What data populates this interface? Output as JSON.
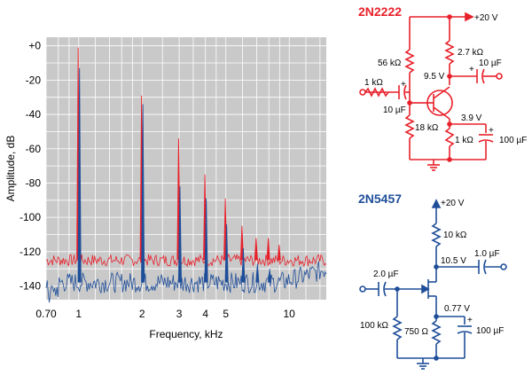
{
  "chart_data": {
    "type": "line",
    "xlabel": "Frequency, kHz",
    "ylabel": "Amplitude, dB",
    "xscale": "log",
    "xlim": [
      0.7,
      15
    ],
    "ylim": [
      -148,
      5
    ],
    "grid": true,
    "x_ticks": [
      {
        "value": 0.7,
        "label": "0.70"
      },
      {
        "value": 1,
        "label": "1"
      },
      {
        "value": 2,
        "label": "2"
      },
      {
        "value": 3,
        "label": "3"
      },
      {
        "value": 4,
        "label": "4"
      },
      {
        "value": 5,
        "label": "5"
      },
      {
        "value": 10,
        "label": "10"
      }
    ],
    "y_ticks": [
      {
        "value": 0,
        "label": "+0"
      },
      {
        "value": -20,
        "label": "-20"
      },
      {
        "value": -40,
        "label": "-40"
      },
      {
        "value": -60,
        "label": "-60"
      },
      {
        "value": -80,
        "label": "-80"
      },
      {
        "value": -100,
        "label": "-100"
      },
      {
        "value": -120,
        "label": "-120"
      },
      {
        "value": -140,
        "label": "-140"
      }
    ],
    "series": [
      {
        "color": "#e8202a",
        "noise_floor": -125,
        "harmonics": [
          {
            "x": 1,
            "y": -1
          },
          {
            "x": 2,
            "y": -29
          },
          {
            "x": 3,
            "y": -54
          },
          {
            "x": 4,
            "y": -75
          },
          {
            "x": 5,
            "y": -89
          },
          {
            "x": 6,
            "y": -105
          },
          {
            "x": 7,
            "y": -112
          },
          {
            "x": 8,
            "y": -112
          },
          {
            "x": 9,
            "y": -116
          }
        ]
      },
      {
        "color": "#1f4e99",
        "noise_floor": -138,
        "harmonics": [
          {
            "x": 1,
            "y": -13
          },
          {
            "x": 2,
            "y": -34
          },
          {
            "x": 3,
            "y": -82
          },
          {
            "x": 4,
            "y": -89
          },
          {
            "x": 5,
            "y": -104
          },
          {
            "x": 6,
            "y": -118
          },
          {
            "x": 7,
            "y": -127
          },
          {
            "x": 8,
            "y": -130
          }
        ]
      }
    ]
  },
  "schematic_top": {
    "title": "2N2222",
    "supply": "+20 V",
    "r_collector": "2.7 kΩ",
    "r_bias_top": "56 kΩ",
    "v_collector": "9.5 V",
    "c_out": "10 µF",
    "r_in": "1 kΩ",
    "c_in": "10 µF",
    "v_emitter": "3.9 V",
    "r_bias_bottom": "18 kΩ",
    "r_emitter": "1 kΩ",
    "c_emitter": "100 µF",
    "plus": "+"
  },
  "schematic_bottom": {
    "title": "2N5457",
    "supply": "+20 V",
    "r_drain": "10 kΩ",
    "v_drain": "10.5 V",
    "c_out": "1.0 µF",
    "c_in": "2.0 µF",
    "v_source": "0.77 V",
    "r_gate": "100 kΩ",
    "r_source": "750 Ω",
    "c_source": "100 µF",
    "plus": "+"
  },
  "colors": {
    "red": "#e8202a",
    "blue": "#1f4e99",
    "plot_bg": "#c9c9c9",
    "grid": "#ffffff"
  }
}
